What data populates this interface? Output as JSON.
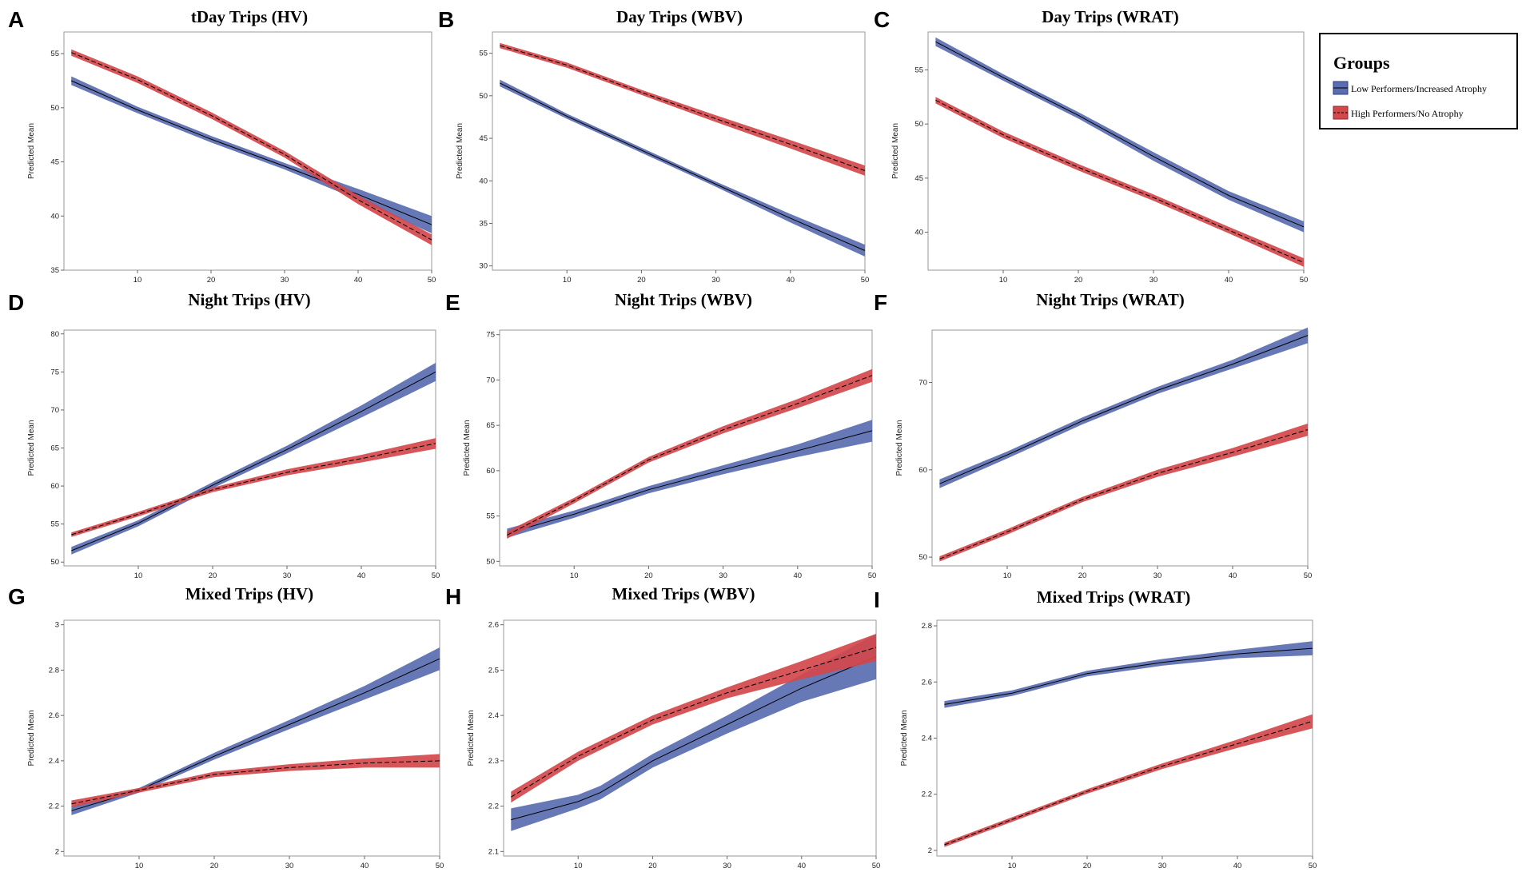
{
  "legend": {
    "title": "Groups",
    "items": [
      {
        "label": "Low Performers/Increased Atrophy",
        "color": "#5a6db0",
        "line_style": "solid"
      },
      {
        "label": "High Performers/No Atrophy",
        "color": "#d2484b",
        "line_style": "dashed"
      }
    ]
  },
  "colors": {
    "low_band": "#5a6db0",
    "high_band": "#d2484b",
    "line": "#000000",
    "frame": "#9a9a9a"
  },
  "chart_data": [
    {
      "panel": "A",
      "type": "line",
      "title": "tDay Trips (HV)",
      "ylabel": "Predicted Mean",
      "xlabel": "",
      "xlim": [
        0,
        50
      ],
      "ylim": [
        35,
        57
      ],
      "xticks": [
        10,
        20,
        30,
        40,
        50
      ],
      "yticks": [
        35,
        40,
        45,
        50,
        55
      ],
      "series": [
        {
          "name": "Low Performers/Increased Atrophy",
          "x": [
            1,
            10,
            20,
            30,
            40,
            50
          ],
          "y": [
            52.5,
            49.8,
            47.1,
            44.6,
            42.0,
            39.2
          ],
          "band": [
            0.4,
            0.3,
            0.3,
            0.3,
            0.5,
            0.8
          ]
        },
        {
          "name": "High Performers/No Atrophy",
          "x": [
            1,
            10,
            20,
            30,
            40,
            50
          ],
          "y": [
            55.1,
            52.6,
            49.3,
            45.7,
            41.5,
            37.8
          ],
          "band": [
            0.3,
            0.3,
            0.3,
            0.3,
            0.4,
            0.5
          ]
        }
      ]
    },
    {
      "panel": "B",
      "type": "line",
      "title": "Day Trips (WBV)",
      "ylabel": "Predicted Mean",
      "xlabel": "",
      "xlim": [
        0,
        50
      ],
      "ylim": [
        29.5,
        57.5
      ],
      "xticks": [
        10,
        20,
        30,
        40,
        50
      ],
      "yticks": [
        30,
        35,
        40,
        45,
        50,
        55
      ],
      "series": [
        {
          "name": "Low Performers/Increased Atrophy",
          "x": [
            1,
            10,
            20,
            30,
            40,
            50
          ],
          "y": [
            51.5,
            47.6,
            43.6,
            39.6,
            35.6,
            31.8
          ],
          "band": [
            0.4,
            0.3,
            0.3,
            0.3,
            0.5,
            0.7
          ]
        },
        {
          "name": "High Performers/No Atrophy",
          "x": [
            1,
            10,
            20,
            30,
            40,
            50
          ],
          "y": [
            55.9,
            53.6,
            50.4,
            47.3,
            44.3,
            41.2
          ],
          "band": [
            0.3,
            0.3,
            0.3,
            0.4,
            0.5,
            0.6
          ]
        }
      ]
    },
    {
      "panel": "C",
      "type": "line",
      "title": "Day Trips (WRAT)",
      "ylabel": "Predicted Mean",
      "xlabel": "",
      "xlim": [
        0,
        50
      ],
      "ylim": [
        36.5,
        58.5
      ],
      "xticks": [
        10,
        20,
        30,
        40,
        50
      ],
      "yticks": [
        40,
        45,
        50,
        55
      ],
      "series": [
        {
          "name": "Low Performers/Increased Atrophy",
          "x": [
            1,
            10,
            20,
            30,
            40,
            50
          ],
          "y": [
            57.6,
            54.3,
            50.8,
            47.0,
            43.4,
            40.5
          ],
          "band": [
            0.4,
            0.3,
            0.3,
            0.4,
            0.4,
            0.5
          ]
        },
        {
          "name": "High Performers/No Atrophy",
          "x": [
            1,
            10,
            20,
            30,
            40,
            50
          ],
          "y": [
            52.2,
            49.0,
            46.0,
            43.2,
            40.2,
            37.2
          ],
          "band": [
            0.3,
            0.3,
            0.3,
            0.3,
            0.3,
            0.4
          ]
        }
      ]
    },
    {
      "panel": "D",
      "type": "line",
      "title": "Night Trips (HV)",
      "ylabel": "Predicted Mean",
      "xlabel": "",
      "xlim": [
        0,
        50
      ],
      "ylim": [
        49.5,
        80.5
      ],
      "xticks": [
        10,
        20,
        30,
        40,
        50
      ],
      "yticks": [
        50,
        55,
        60,
        65,
        70,
        75,
        80
      ],
      "series": [
        {
          "name": "Low Performers/Increased Atrophy",
          "x": [
            1,
            10,
            20,
            30,
            40,
            50
          ],
          "y": [
            51.5,
            55.1,
            60.1,
            64.8,
            69.8,
            75.0
          ],
          "band": [
            0.5,
            0.4,
            0.4,
            0.5,
            0.8,
            1.2
          ]
        },
        {
          "name": "High Performers/No Atrophy",
          "x": [
            1,
            10,
            20,
            30,
            40,
            50
          ],
          "y": [
            53.6,
            56.3,
            59.5,
            61.8,
            63.6,
            65.6
          ],
          "band": [
            0.3,
            0.3,
            0.3,
            0.4,
            0.5,
            0.7
          ]
        }
      ]
    },
    {
      "panel": "E",
      "type": "line",
      "title": "Night Trips (WBV)",
      "ylabel": "Predicted Mean",
      "xlabel": "",
      "xlim": [
        0,
        50
      ],
      "ylim": [
        49.5,
        75.5
      ],
      "xticks": [
        10,
        20,
        30,
        40,
        50
      ],
      "yticks": [
        50,
        55,
        60,
        65,
        70,
        75
      ],
      "series": [
        {
          "name": "Low Performers/Increased Atrophy",
          "x": [
            1,
            10,
            20,
            30,
            40,
            50
          ],
          "y": [
            53.1,
            55.2,
            57.9,
            60.1,
            62.2,
            64.4
          ],
          "band": [
            0.5,
            0.4,
            0.4,
            0.5,
            0.7,
            1.2
          ]
        },
        {
          "name": "High Performers/No Atrophy",
          "x": [
            1,
            10,
            20,
            30,
            40,
            50
          ],
          "y": [
            52.9,
            56.7,
            61.2,
            64.5,
            67.4,
            70.5
          ],
          "band": [
            0.4,
            0.3,
            0.3,
            0.4,
            0.5,
            0.7
          ]
        }
      ]
    },
    {
      "panel": "F",
      "type": "line",
      "title": "Night Trips (WRAT)",
      "ylabel": "Predicted Mean",
      "xlabel": "",
      "xlim": [
        0,
        50
      ],
      "ylim": [
        49,
        76
      ],
      "xticks": [
        10,
        20,
        30,
        40,
        50
      ],
      "yticks": [
        50,
        60,
        70
      ],
      "series": [
        {
          "name": "Low Performers/Increased Atrophy",
          "x": [
            1,
            10,
            20,
            30,
            40,
            50
          ],
          "y": [
            58.4,
            61.7,
            65.6,
            69.1,
            72.1,
            75.4
          ],
          "band": [
            0.5,
            0.4,
            0.4,
            0.4,
            0.5,
            0.9
          ]
        },
        {
          "name": "High Performers/No Atrophy",
          "x": [
            1,
            10,
            20,
            30,
            40,
            50
          ],
          "y": [
            49.8,
            52.9,
            56.6,
            59.6,
            62.0,
            64.6
          ],
          "band": [
            0.3,
            0.3,
            0.3,
            0.4,
            0.5,
            0.7
          ]
        }
      ]
    },
    {
      "panel": "G",
      "type": "line",
      "title": "Mixed Trips (HV)",
      "ylabel": "Predicted Mean",
      "xlabel": "",
      "xlim": [
        0,
        50
      ],
      "ylim": [
        1.98,
        3.02
      ],
      "xticks": [
        10,
        20,
        30,
        40,
        50
      ],
      "yticks": [
        2.0,
        2.2,
        2.4,
        2.6,
        2.8,
        3.0
      ],
      "series": [
        {
          "name": "Low Performers/Increased Atrophy",
          "x": [
            1,
            10,
            20,
            30,
            40,
            50
          ],
          "y": [
            2.18,
            2.27,
            2.42,
            2.56,
            2.7,
            2.85
          ],
          "band": [
            0.02,
            0.01,
            0.015,
            0.02,
            0.03,
            0.05
          ]
        },
        {
          "name": "High Performers/No Atrophy",
          "x": [
            1,
            10,
            20,
            30,
            40,
            50
          ],
          "y": [
            2.21,
            2.27,
            2.34,
            2.37,
            2.39,
            2.4
          ],
          "band": [
            0.015,
            0.01,
            0.012,
            0.015,
            0.02,
            0.03
          ]
        }
      ]
    },
    {
      "panel": "H",
      "type": "line",
      "title": "Mixed Trips (WBV)",
      "ylabel": "Predicted Mean",
      "xlabel": "",
      "xlim": [
        0,
        50
      ],
      "ylim": [
        2.09,
        2.61
      ],
      "xticks": [
        10,
        20,
        30,
        40,
        50
      ],
      "yticks": [
        2.1,
        2.2,
        2.3,
        2.4,
        2.5,
        2.6
      ],
      "series": [
        {
          "name": "Low Performers/Increased Atrophy",
          "x": [
            1,
            10,
            13,
            20,
            30,
            40,
            50
          ],
          "y": [
            2.17,
            2.21,
            2.23,
            2.3,
            2.38,
            2.46,
            2.53
          ],
          "band": [
            0.025,
            0.015,
            0.015,
            0.015,
            0.02,
            0.03,
            0.05
          ]
        },
        {
          "name": "High Performers/No Atrophy",
          "x": [
            1,
            10,
            20,
            30,
            40,
            50
          ],
          "y": [
            2.22,
            2.31,
            2.39,
            2.45,
            2.5,
            2.55
          ],
          "band": [
            0.012,
            0.01,
            0.01,
            0.012,
            0.02,
            0.03
          ]
        }
      ]
    },
    {
      "panel": "I",
      "type": "line",
      "title": "Mixed Trips (WRAT)",
      "ylabel": "Predicted Mean",
      "xlabel": "",
      "xlim": [
        0,
        50
      ],
      "ylim": [
        1.98,
        2.82
      ],
      "xticks": [
        10,
        20,
        30,
        40,
        50
      ],
      "yticks": [
        2.0,
        2.2,
        2.4,
        2.6,
        2.8
      ],
      "series": [
        {
          "name": "Low Performers/Increased Atrophy",
          "x": [
            1,
            10,
            20,
            30,
            40,
            50
          ],
          "y": [
            2.52,
            2.56,
            2.63,
            2.67,
            2.7,
            2.72
          ],
          "band": [
            0.012,
            0.01,
            0.01,
            0.012,
            0.015,
            0.025
          ]
        },
        {
          "name": "High Performers/No Atrophy",
          "x": [
            1,
            10,
            20,
            30,
            40,
            50
          ],
          "y": [
            2.02,
            2.11,
            2.21,
            2.3,
            2.38,
            2.46
          ],
          "band": [
            0.008,
            0.008,
            0.008,
            0.01,
            0.015,
            0.025
          ]
        }
      ]
    }
  ]
}
